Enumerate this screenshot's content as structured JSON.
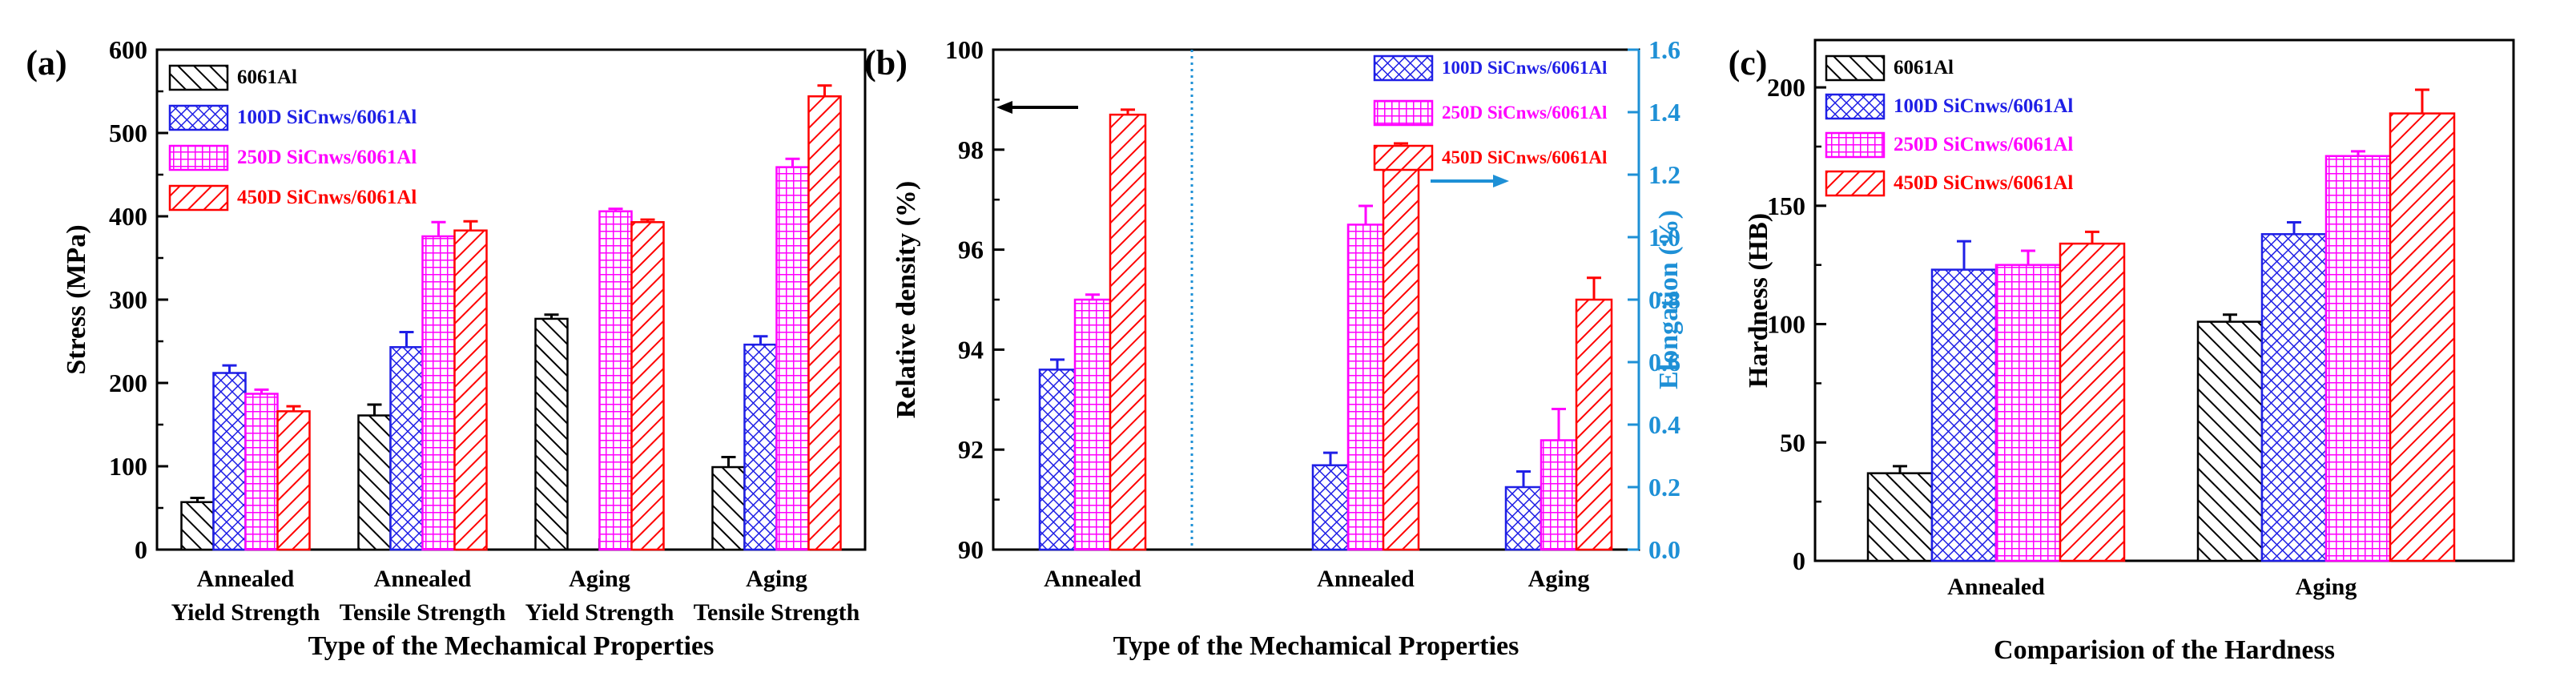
{
  "colors": {
    "6061Al": "#000000",
    "100D": "#1f1fe6",
    "250D": "#ff00ff",
    "450D": "#ff0000",
    "elong_axis": "#1e90d6",
    "divider": "#1e90d6"
  },
  "chart_data": [
    {
      "type": "bar",
      "panel_label": "(a)",
      "title": "",
      "xlabel": "Type of the Mechamical Properties",
      "ylabel": "Stress (MPa)",
      "ylim": [
        0,
        600
      ],
      "yticks": [
        "0",
        "100",
        "200",
        "300",
        "400",
        "500",
        "600"
      ],
      "categories": [
        [
          "Annealed",
          "Yield Strength"
        ],
        [
          "Annealed",
          "Tensile Strength"
        ],
        [
          "Aging",
          "Yield Strength"
        ],
        [
          "Aging",
          "Tensile Strength"
        ]
      ],
      "legend": [
        "6061Al",
        "100D SiCnws/6061Al",
        "250D SiCnws/6061Al",
        "450D SiCnws/6061Al"
      ],
      "series": [
        {
          "name": "6061Al",
          "values": [
            57,
            161,
            277,
            99
          ],
          "errors": [
            5,
            13,
            5,
            12
          ]
        },
        {
          "name": "100D SiCnws/6061Al",
          "values": [
            212,
            243,
            0,
            246
          ],
          "errors": [
            9,
            18,
            0,
            10
          ]
        },
        {
          "name": "250D SiCnws/6061Al",
          "values": [
            187,
            376,
            406,
            459
          ],
          "errors": [
            5,
            17,
            3,
            10
          ]
        },
        {
          "name": "450D SiCnws/6061Al",
          "values": [
            166,
            383,
            393,
            544
          ],
          "errors": [
            6,
            11,
            3,
            13
          ]
        }
      ],
      "grid": false
    },
    {
      "type": "bar",
      "panel_label": "(b)",
      "title": "",
      "xlabel": "Type of the Mechamical Properties",
      "ylabel": "Relative density (%)",
      "ylabel_right": "Elongation (%)",
      "ylim": [
        90,
        100
      ],
      "yticks": [
        "90",
        "92",
        "94",
        "96",
        "98",
        "100"
      ],
      "ylim_right": [
        0.0,
        1.6
      ],
      "yticks_right": [
        "0.0",
        "0.2",
        "0.4",
        "0.6",
        "0.8",
        "1.0",
        "1.2",
        "1.4",
        "1.6"
      ],
      "categories": [
        "Annealed",
        "Annealed",
        "Aging"
      ],
      "legend": [
        "100D SiCnws/6061Al",
        "250D SiCnws/6061Al",
        "450D SiCnws/6061Al"
      ],
      "groups": [
        {
          "axis": "left",
          "series": [
            {
              "name": "100D SiCnws/6061Al",
              "value": 93.6,
              "error": 0.2
            },
            {
              "name": "250D SiCnws/6061Al",
              "value": 95.0,
              "error": 0.1
            },
            {
              "name": "450D SiCnws/6061Al",
              "value": 98.7,
              "error": 0.1
            }
          ]
        },
        {
          "axis": "right",
          "series": [
            {
              "name": "100D SiCnws/6061Al",
              "value": 0.27,
              "error": 0.04
            },
            {
              "name": "250D SiCnws/6061Al",
              "value": 1.04,
              "error": 0.06
            },
            {
              "name": "450D SiCnws/6061Al",
              "value": 1.25,
              "error": 0.05
            }
          ]
        },
        {
          "axis": "right",
          "series": [
            {
              "name": "100D SiCnws/6061Al",
              "value": 0.2,
              "error": 0.05
            },
            {
              "name": "250D SiCnws/6061Al",
              "value": 0.35,
              "error": 0.1
            },
            {
              "name": "450D SiCnws/6061Al",
              "value": 0.8,
              "error": 0.07
            }
          ]
        }
      ],
      "grid": false
    },
    {
      "type": "bar",
      "panel_label": "(c)",
      "title": "",
      "xlabel": "Comparision of the Hardness",
      "ylabel": "Hardness (HB)",
      "ylim": [
        0,
        220
      ],
      "yticks": [
        "0",
        "50",
        "100",
        "150",
        "200"
      ],
      "categories": [
        "Annealed",
        "Aging"
      ],
      "legend": [
        "6061Al",
        "100D SiCnws/6061Al",
        "250D SiCnws/6061Al",
        "450D SiCnws/6061Al"
      ],
      "series": [
        {
          "name": "6061Al",
          "values": [
            37,
            101
          ],
          "errors": [
            3,
            3
          ]
        },
        {
          "name": "100D SiCnws/6061Al",
          "values": [
            123,
            138
          ],
          "errors": [
            12,
            5
          ]
        },
        {
          "name": "250D SiCnws/6061Al",
          "values": [
            125,
            171
          ],
          "errors": [
            6,
            2
          ]
        },
        {
          "name": "450D SiCnws/6061Al",
          "values": [
            134,
            189
          ],
          "errors": [
            5,
            10
          ]
        }
      ],
      "grid": false
    }
  ]
}
